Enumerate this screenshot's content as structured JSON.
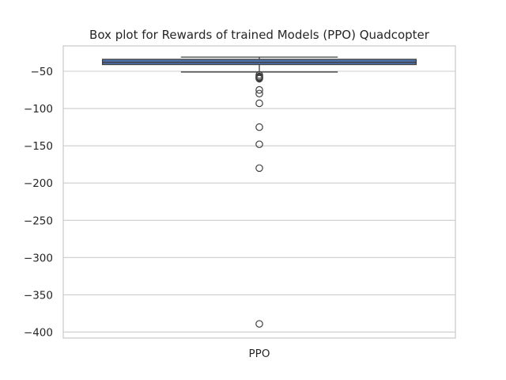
{
  "chart_data": {
    "type": "box",
    "title": "Box plot for Rewards of trained Models (PPO) Quadcopter",
    "xlabel": "",
    "ylabel": "",
    "categories": [
      "PPO"
    ],
    "ylim": [
      -408,
      -16
    ],
    "yticks": [
      -400,
      -350,
      -300,
      -250,
      -200,
      -150,
      -100,
      -50
    ],
    "ytick_labels": [
      "−400",
      "−350",
      "−300",
      "−250",
      "−200",
      "−150",
      "−100",
      "−50"
    ],
    "grid": true,
    "series": [
      {
        "category": "PPO",
        "box": {
          "whisker_low": -51,
          "q1": -41,
          "median": -38,
          "q3": -34,
          "whisker_high": -31
        },
        "outliers": [
          -55,
          -57,
          -58,
          -59,
          -60,
          -75,
          -80,
          -93,
          -125,
          -148,
          -180,
          -389
        ]
      }
    ],
    "colors": {
      "box_fill": "#4c72b0",
      "edge": "#3f3f3f",
      "grid": "#cccccc",
      "spine": "#cccccc",
      "text": "#262626"
    }
  }
}
